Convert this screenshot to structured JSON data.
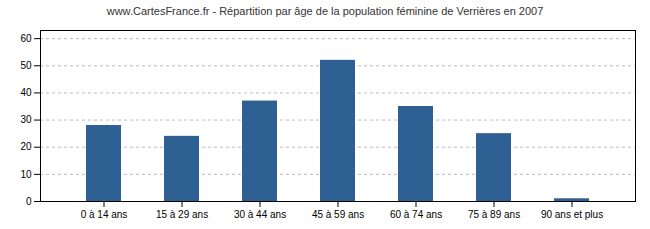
{
  "chart_data": {
    "type": "bar",
    "title": "www.CartesFrance.fr - Répartition par âge de la population féminine de Verrières en 2007",
    "categories": [
      "0 à 14 ans",
      "15 à 29 ans",
      "30 à 44 ans",
      "45 à 59 ans",
      "60 à 74 ans",
      "75 à 89 ans",
      "90 ans et plus"
    ],
    "values": [
      28,
      24,
      37,
      52,
      35,
      25,
      1
    ],
    "color": "#2e6094",
    "ylim": [
      0,
      63
    ],
    "yticks": [
      0,
      10,
      20,
      30,
      40,
      50,
      60
    ],
    "grid": true
  }
}
